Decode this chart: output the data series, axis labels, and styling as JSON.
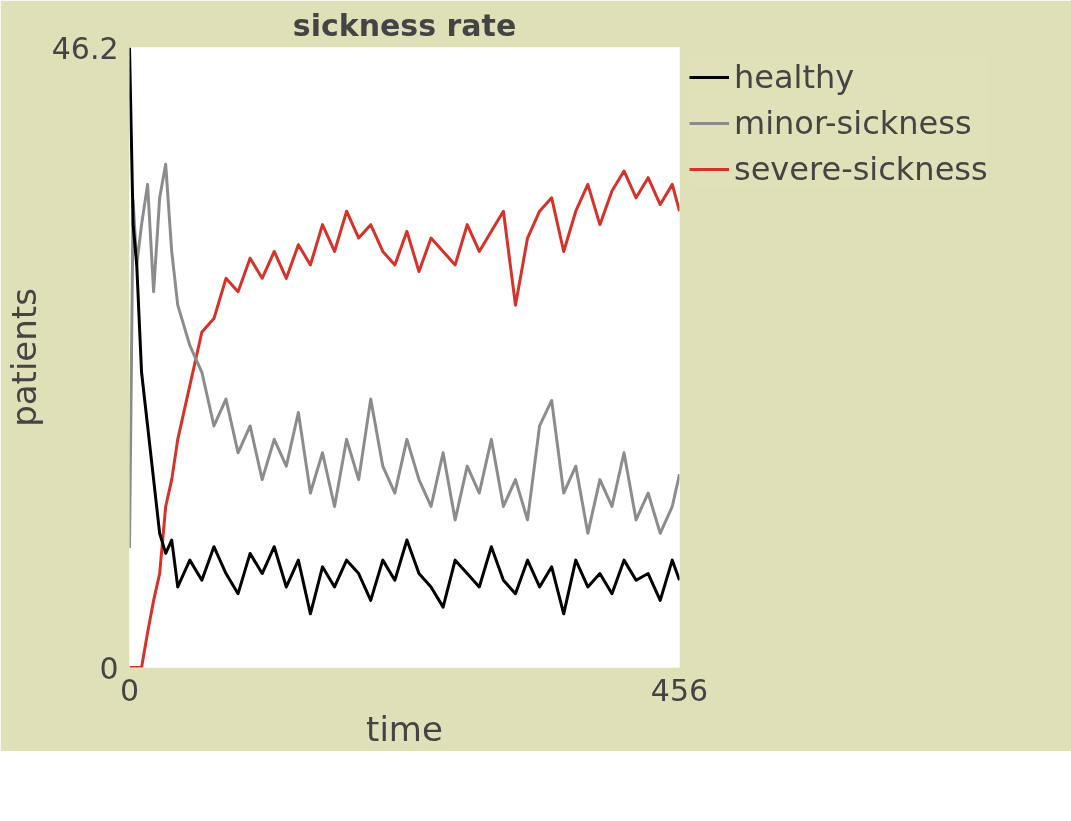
{
  "chart_data": {
    "type": "line",
    "title": "sickness rate",
    "xlabel": "time",
    "ylabel": "patients",
    "x": [
      0,
      3,
      6,
      10,
      15,
      20,
      25,
      30,
      35,
      40,
      50,
      60,
      70,
      80,
      90,
      100,
      110,
      120,
      130,
      140,
      150,
      160,
      170,
      180,
      190,
      200,
      210,
      220,
      230,
      240,
      250,
      260,
      270,
      280,
      290,
      300,
      310,
      320,
      330,
      340,
      350,
      360,
      370,
      380,
      390,
      400,
      410,
      420,
      430,
      440,
      450,
      456
    ],
    "series": [
      {
        "name": "healthy",
        "color": "#000000",
        "values": [
          46.2,
          33,
          30,
          22,
          18,
          14,
          10,
          8.5,
          9.5,
          6,
          8,
          6.5,
          9,
          7,
          5.5,
          8.5,
          7,
          9,
          6,
          8,
          4,
          7.5,
          6,
          8,
          7,
          5,
          8,
          6.5,
          9.5,
          7,
          6,
          4.5,
          8,
          7,
          6,
          9,
          6.5,
          5.5,
          8,
          6,
          7.5,
          4,
          8,
          6,
          7,
          5.5,
          8,
          6.5,
          7,
          5,
          8,
          6.5
        ]
      },
      {
        "name": "minor-sickness",
        "color": "#8c8c8c",
        "values": [
          8.9,
          34.8,
          30,
          33,
          36,
          28,
          35,
          37.5,
          31,
          27,
          24,
          22,
          18,
          20,
          16,
          18,
          14,
          17,
          15,
          19,
          13,
          16,
          12,
          17,
          14,
          20,
          15,
          13,
          17,
          14,
          12,
          16,
          11,
          15,
          13,
          17,
          12,
          14,
          11,
          18,
          19.9,
          13,
          15,
          10,
          14,
          12,
          16,
          11,
          13,
          10,
          12,
          14.4
        ]
      },
      {
        "name": "severe-sickness",
        "color": "#d73229",
        "values": [
          0,
          0,
          0,
          0,
          2.6,
          5,
          7,
          12,
          14,
          17,
          21,
          25,
          26,
          29,
          28,
          30.5,
          29,
          31,
          29,
          31.5,
          30,
          33,
          31,
          34,
          32,
          33,
          31,
          30,
          32.5,
          29.5,
          32,
          31,
          30,
          33,
          31,
          32.5,
          34,
          27,
          32,
          34,
          35,
          31,
          34,
          36,
          33,
          35.5,
          37,
          35,
          36.5,
          34.5,
          36,
          34
        ]
      }
    ],
    "xlim": [
      0,
      456
    ],
    "ylim": [
      0,
      46.2
    ],
    "xticks": [
      0,
      456
    ],
    "yticks": [
      0,
      46.2
    ],
    "legend": "right",
    "line_style": "solid",
    "marker": "none"
  }
}
